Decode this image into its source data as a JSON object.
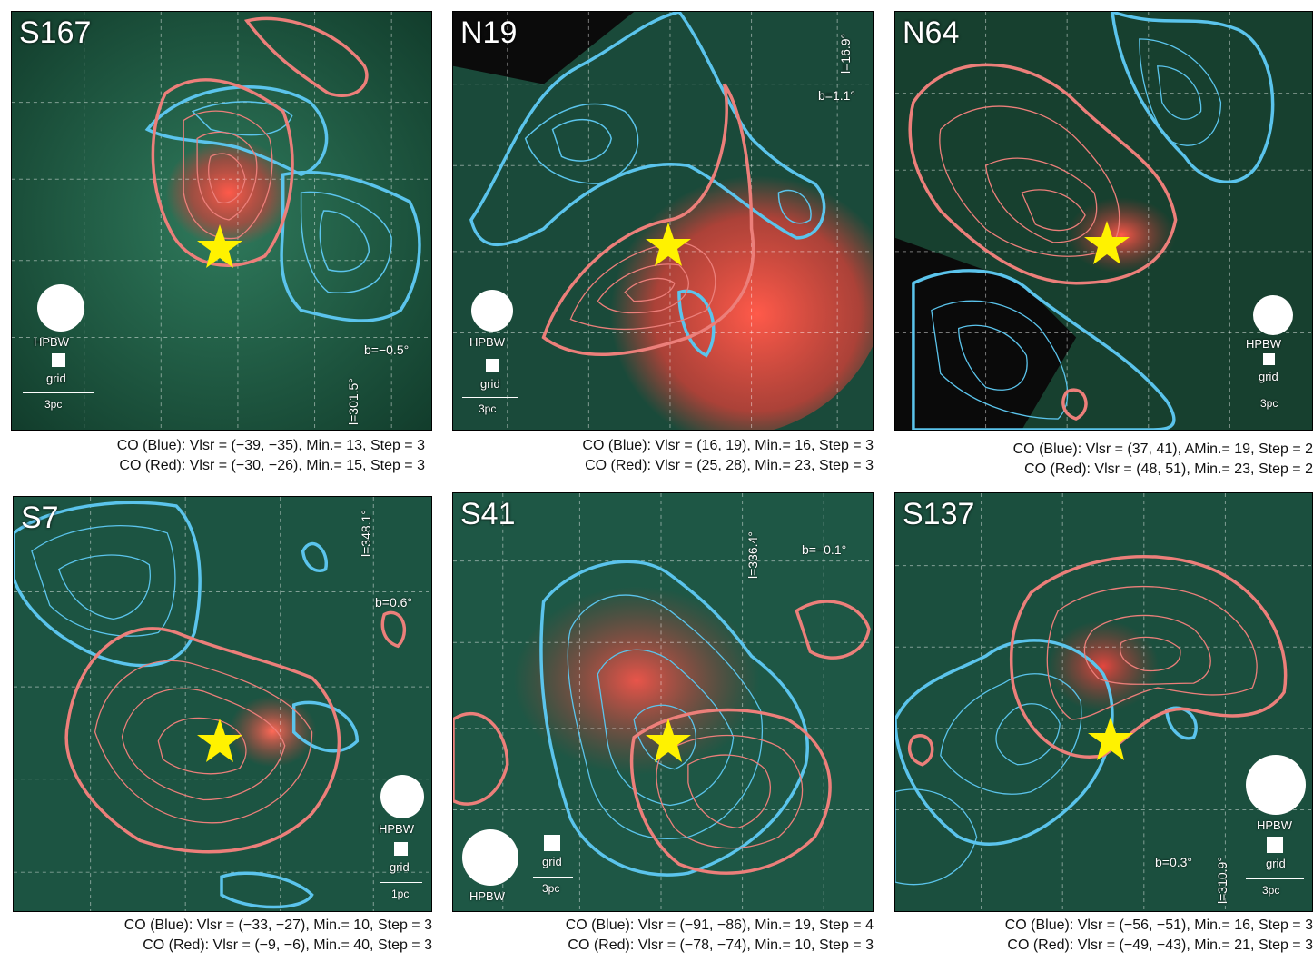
{
  "panels": [
    {
      "name": "S167",
      "hpbw_label": "HPBW",
      "grid_label": "grid",
      "scale_label": "3pc",
      "lon_label": "l=301.5°",
      "lat_label": "b=−0.5°",
      "caption_blue": "CO (Blue): Vlsr = (−39, −35), Min.= 13, Step = 3",
      "caption_red": "CO (Red): Vlsr = (−30, −26), Min.= 15, Step = 3"
    },
    {
      "name": "N19",
      "hpbw_label": "HPBW",
      "grid_label": "grid",
      "scale_label": "3pc",
      "lon_label": "l=16.9°",
      "lat_label": "b=1.1°",
      "caption_blue": "CO (Blue): Vlsr = (16, 19), Min.= 16, Step = 3",
      "caption_red": "CO (Red): Vlsr = (25, 28), Min.= 23, Step = 3"
    },
    {
      "name": "N64",
      "hpbw_label": "HPBW",
      "grid_label": "grid",
      "scale_label": "3pc",
      "lon_label": "",
      "lat_label": "",
      "caption_blue": "CO (Blue): Vlsr = (37, 41), AMin.= 19, Step = 2",
      "caption_red": "CO (Red): Vlsr = (48, 51), Min.= 23, Step = 2"
    },
    {
      "name": "S7",
      "hpbw_label": "HPBW",
      "grid_label": "grid",
      "scale_label": "1pc",
      "lon_label": "l=348.1°",
      "lat_label": "b=0.6°",
      "caption_blue": "CO (Blue): Vlsr = (−33, −27), Min.= 10, Step = 3",
      "caption_red": "CO (Red): Vlsr = (−9, −6), Min.= 40, Step = 3"
    },
    {
      "name": "S41",
      "hpbw_label": "HPBW",
      "grid_label": "grid",
      "scale_label": "3pc",
      "lon_label": "l=336.4°",
      "lat_label": "b=−0.1°",
      "caption_blue": "CO (Blue): Vlsr = (−91, −86), Min.= 19, Step = 4",
      "caption_red": "CO (Red): Vlsr = (−78, −74), Min.= 10, Step = 3"
    },
    {
      "name": "S137",
      "hpbw_label": "HPBW",
      "grid_label": "grid",
      "scale_label": "3pc",
      "lon_label": "l=310.9°",
      "lat_label": "b=0.3°",
      "caption_blue": "CO (Blue): Vlsr = (−56, −51), Min.= 16, Step = 3",
      "caption_red": "CO (Red): Vlsr = (−49, −43), Min.= 21, Step = 3"
    }
  ],
  "colors": {
    "contour_blue": "#5bc4ec",
    "contour_red": "#ec7f7a",
    "star": "#fff200",
    "background_green": "#1f5a43",
    "background_red": "#e0413d"
  }
}
